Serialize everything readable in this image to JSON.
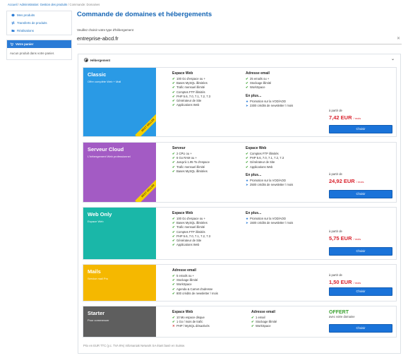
{
  "breadcrumb": {
    "home": "Accueil",
    "admin": "Administration: Gestion des produits",
    "current": "Commande: Domaines"
  },
  "sidebar": {
    "items": [
      {
        "label": "Mes produits",
        "icon": "cube-icon"
      },
      {
        "label": "Transferts de produits",
        "icon": "transfer-icon"
      },
      {
        "label": "Réalisations",
        "icon": "folder-icon"
      }
    ],
    "cart_title": "Votre panier",
    "cart_empty": "Aucun produit dans votre panier."
  },
  "main": {
    "title": "Commande de domaines et hébergements",
    "subtitle": "Veuillez choisir votre type d'hébergement",
    "domain": "entreprise-abcd.fr"
  },
  "panel": {
    "label": "Hébergement",
    "footnote": "Prix en EUR TTC (y.c. TVA 8%) Infomaniak Network SA étant basé en Suisse.",
    "price_prefix": "à partir de",
    "per_month": "/ mois",
    "choose": "Choisir",
    "bonus_title": "En plus..."
  },
  "offers": [
    {
      "name": "Classic",
      "desc": "Offre complète Web + Mail",
      "color": "#2a9ae5",
      "ribbon": "BEST SELLER",
      "col1_title": "Espace Web",
      "col1": [
        "100 Go d'espace ou +",
        "Bases MySQL illimitées",
        "Trafic mensuel illimité",
        "Comptes FTP illimités",
        "PHP 5.6, 7.0, 7.1, 7.2, 7.3",
        "Générateur de Site",
        "Applications Web"
      ],
      "col2_title": "Adresse email",
      "col2": [
        "25 emails ou +",
        "Stockage illimité",
        "WorkSpace"
      ],
      "bonus": [
        "Promotion sur la VOD/AOD",
        "2300 crédits de newsletter / mois"
      ],
      "price": "7,42 EUR"
    },
    {
      "name": "Serveur Cloud",
      "desc": "L'hébergement Web professionnel",
      "color": "#a35bc4",
      "ribbon": "BEST SELLER",
      "col1_title": "Serveur",
      "col1": [
        "2 CPU ou +",
        "6 Go RAM ou +",
        "Jusqu'à 1.95 To d'espace",
        "Trafic mensuel illimité",
        "Bases MySQL illimitées"
      ],
      "col2_title": "Espace Web",
      "col2": [
        "Comptes FTP illimités",
        "PHP 5.6, 7.0, 7.1, 7.2, 7.3",
        "Générateur de Site",
        "Applications Web"
      ],
      "bonus": [
        "Promotion sur la VOD/AOD",
        "2500 crédits de newsletter / mois"
      ],
      "price": "24,92 EUR"
    },
    {
      "name": "Web Only",
      "desc": "Espace Web",
      "color": "#1ab7a8",
      "ribbon": "",
      "col1_title": "Espace Web",
      "col1": [
        "100 Go d'espace ou +",
        "Bases MySQL illimitées",
        "Trafic mensuel illimité",
        "Comptes FTP illimités",
        "PHP 5.6, 7.0, 7.1, 7.2, 7.3",
        "Générateur de Site",
        "Applications Web"
      ],
      "col2_title": "En plus...",
      "col2": [],
      "bonus": [
        "Promotion sur la VOD/AOD",
        "1500 crédits de newsletter / mois"
      ],
      "price": "5,75 EUR"
    },
    {
      "name": "Mails",
      "desc": "Service mail Pro",
      "color": "#f5b800",
      "ribbon": "",
      "col1_title": "Adresse email",
      "col1": [
        "5 emails ou +",
        "Stockage illimité",
        "WorkSpace",
        "Agenda & Carnet d'adresse",
        "800 crédits de newsletter / mois"
      ],
      "col2_title": "",
      "col2": [],
      "bonus": [],
      "price": "1,50 EUR"
    },
    {
      "name": "Starter",
      "desc": "Pour commencer",
      "color": "#5e5e5e",
      "ribbon": "",
      "col1_title": "Espace Web",
      "col1": [
        "10 Mo espace disque",
        "1 Go / mois de trafic",
        "PHP / MySQL désactivés"
      ],
      "col2_title": "Adresse email",
      "col2": [
        "1 email",
        "Stockage illimité",
        "WorkSpace"
      ],
      "bonus": [],
      "offert": "OFFERT",
      "offert_sub": "avec votre domaine"
    }
  ]
}
